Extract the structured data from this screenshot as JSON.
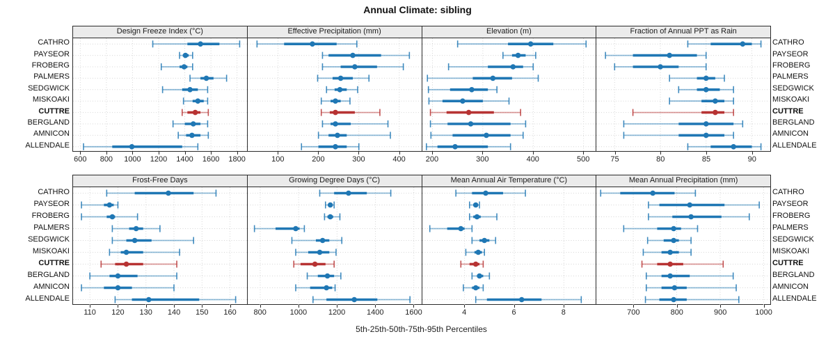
{
  "title": "Annual Climate: sibling",
  "caption": "5th-25th-50th-75th-95th Percentiles",
  "stations": [
    "CATHRO",
    "PAYSEOR",
    "FROBERG",
    "PALMERS",
    "SEDGWICK",
    "MISKOAKI",
    "CUTTRE",
    "BERGLAND",
    "AMNICON",
    "ALLENDALE"
  ],
  "highlight_station": "CUTTRE",
  "colors": {
    "series": "#1f77b4",
    "highlight": "#b73333",
    "header_bg": "#ebebeb",
    "grid": "#d6d6d6",
    "border": "#2a2a2a"
  },
  "chart_data": [
    {
      "type": "dotplot-percentiles",
      "title": "Design Freeze Index (°C)",
      "percentiles": [
        "5th",
        "25th",
        "50th",
        "75th",
        "95th"
      ],
      "xlim": [
        545,
        1875
      ],
      "ticks": [
        600,
        800,
        1000,
        1200,
        1400,
        1600,
        1800
      ],
      "series": [
        {
          "name": "CATHRO",
          "values": [
            1155,
            1420,
            1520,
            1665,
            1820
          ]
        },
        {
          "name": "PAYSEOR",
          "values": [
            1360,
            1385,
            1405,
            1430,
            1460
          ]
        },
        {
          "name": "FROBERG",
          "values": [
            1220,
            1360,
            1395,
            1420,
            1460
          ]
        },
        {
          "name": "PALMERS",
          "values": [
            1440,
            1520,
            1565,
            1620,
            1720
          ]
        },
        {
          "name": "SEDGWICK",
          "values": [
            1230,
            1380,
            1440,
            1500,
            1575
          ]
        },
        {
          "name": "MISKOAKI",
          "values": [
            1390,
            1460,
            1500,
            1545,
            1575
          ]
        },
        {
          "name": "CUTTRE",
          "values": [
            1380,
            1420,
            1480,
            1520,
            1580
          ]
        },
        {
          "name": "BERGLAND",
          "values": [
            1310,
            1400,
            1465,
            1520,
            1575
          ]
        },
        {
          "name": "AMNICON",
          "values": [
            1350,
            1410,
            1455,
            1520,
            1580
          ]
        },
        {
          "name": "ALLENDALE",
          "values": [
            625,
            845,
            995,
            1380,
            1500
          ]
        }
      ]
    },
    {
      "type": "dotplot-percentiles",
      "title": "Effective Precipitation (mm)",
      "percentiles": [
        "5th",
        "25th",
        "50th",
        "75th",
        "95th"
      ],
      "xlim": [
        25,
        455
      ],
      "ticks": [
        100,
        200,
        300,
        400
      ],
      "series": [
        {
          "name": "CATHRO",
          "values": [
            48,
            115,
            185,
            245,
            295
          ]
        },
        {
          "name": "PAYSEOR",
          "values": [
            210,
            225,
            285,
            355,
            425
          ]
        },
        {
          "name": "FROBERG",
          "values": [
            210,
            255,
            290,
            345,
            410
          ]
        },
        {
          "name": "PALMERS",
          "values": [
            198,
            235,
            255,
            285,
            325
          ]
        },
        {
          "name": "SEDGWICK",
          "values": [
            220,
            240,
            253,
            270,
            297
          ]
        },
        {
          "name": "MISKOAKI",
          "values": [
            207,
            230,
            242,
            255,
            278
          ]
        },
        {
          "name": "CUTTRE",
          "values": [
            207,
            228,
            242,
            290,
            352
          ]
        },
        {
          "name": "BERGLAND",
          "values": [
            210,
            230,
            242,
            280,
            372
          ]
        },
        {
          "name": "AMNICON",
          "values": [
            200,
            225,
            247,
            270,
            378
          ]
        },
        {
          "name": "ALLENDALE",
          "values": [
            158,
            200,
            242,
            270,
            300
          ]
        }
      ]
    },
    {
      "type": "dotplot-percentiles",
      "title": "Elevation (m)",
      "percentiles": [
        "5th",
        "25th",
        "50th",
        "75th",
        "95th"
      ],
      "xlim": [
        180,
        525
      ],
      "ticks": [
        200,
        300,
        400,
        500
      ],
      "series": [
        {
          "name": "CATHRO",
          "values": [
            250,
            350,
            395,
            440,
            505
          ]
        },
        {
          "name": "PAYSEOR",
          "values": [
            340,
            358,
            370,
            385,
            405
          ]
        },
        {
          "name": "FROBERG",
          "values": [
            232,
            310,
            360,
            380,
            400
          ]
        },
        {
          "name": "PALMERS",
          "values": [
            190,
            280,
            320,
            358,
            410
          ]
        },
        {
          "name": "SEDGWICK",
          "values": [
            192,
            235,
            278,
            310,
            328
          ]
        },
        {
          "name": "MISKOAKI",
          "values": [
            193,
            220,
            260,
            300,
            352
          ]
        },
        {
          "name": "CUTTRE",
          "values": [
            196,
            228,
            272,
            322,
            375
          ]
        },
        {
          "name": "BERGLAND",
          "values": [
            196,
            230,
            276,
            355,
            385
          ]
        },
        {
          "name": "AMNICON",
          "values": [
            197,
            240,
            307,
            355,
            380
          ]
        },
        {
          "name": "ALLENDALE",
          "values": [
            188,
            210,
            245,
            310,
            355
          ]
        }
      ]
    },
    {
      "type": "dotplot-percentiles",
      "title": "Fraction of Annual PPT as Rain",
      "percentiles": [
        "5th",
        "25th",
        "50th",
        "75th",
        "95th"
      ],
      "xlim": [
        73,
        92
      ],
      "ticks": [
        75,
        80,
        85,
        90
      ],
      "series": [
        {
          "name": "CATHRO",
          "values": [
            83,
            85.5,
            89,
            90,
            91
          ]
        },
        {
          "name": "PAYSEOR",
          "values": [
            74,
            77,
            81,
            84,
            85
          ]
        },
        {
          "name": "FROBERG",
          "values": [
            75,
            77,
            80,
            82,
            85
          ]
        },
        {
          "name": "PALMERS",
          "values": [
            81,
            84,
            85,
            86,
            87
          ]
        },
        {
          "name": "SEDGWICK",
          "values": [
            82,
            84,
            85,
            86.5,
            88
          ]
        },
        {
          "name": "MISKOAKI",
          "values": [
            81,
            84.5,
            86,
            87,
            88
          ]
        },
        {
          "name": "CUTTRE",
          "values": [
            77,
            84.5,
            86,
            87,
            88
          ]
        },
        {
          "name": "BERGLAND",
          "values": [
            76,
            82,
            85,
            88,
            89
          ]
        },
        {
          "name": "AMNICON",
          "values": [
            76,
            82,
            85,
            87,
            88
          ]
        },
        {
          "name": "ALLENDALE",
          "values": [
            83,
            85.5,
            88,
            90,
            91
          ]
        }
      ]
    },
    {
      "type": "dotplot-percentiles",
      "title": "Frost-Free Days",
      "percentiles": [
        "5th",
        "25th",
        "50th",
        "75th",
        "95th"
      ],
      "xlim": [
        104,
        166
      ],
      "ticks": [
        110,
        120,
        130,
        140,
        150,
        160
      ],
      "series": [
        {
          "name": "CATHRO",
          "values": [
            116,
            126,
            138,
            147,
            155
          ]
        },
        {
          "name": "PAYSEOR",
          "values": [
            107,
            115,
            117,
            118.5,
            120
          ]
        },
        {
          "name": "FROBERG",
          "values": [
            107,
            116,
            118,
            119,
            127
          ]
        },
        {
          "name": "PALMERS",
          "values": [
            118,
            124,
            126.5,
            129,
            135
          ]
        },
        {
          "name": "SEDGWICK",
          "values": [
            118,
            123,
            126,
            132,
            147
          ]
        },
        {
          "name": "MISKOAKI",
          "values": [
            117,
            121,
            123,
            129,
            142
          ]
        },
        {
          "name": "CUTTRE",
          "values": [
            114,
            119,
            123,
            129,
            141
          ]
        },
        {
          "name": "BERGLAND",
          "values": [
            110,
            117,
            120,
            127,
            141
          ]
        },
        {
          "name": "AMNICON",
          "values": [
            107,
            115,
            120,
            125,
            140
          ]
        },
        {
          "name": "ALLENDALE",
          "values": [
            119,
            125,
            131,
            149,
            162
          ]
        }
      ]
    },
    {
      "type": "dotplot-percentiles",
      "title": "Growing Degree Days (°C)",
      "percentiles": [
        "5th",
        "25th",
        "50th",
        "75th",
        "95th"
      ],
      "xlim": [
        735,
        1640
      ],
      "ticks": [
        800,
        1000,
        1200,
        1400,
        1600
      ],
      "series": [
        {
          "name": "CATHRO",
          "values": [
            1110,
            1185,
            1260,
            1355,
            1480
          ]
        },
        {
          "name": "PAYSEOR",
          "values": [
            1140,
            1155,
            1165,
            1172,
            1185
          ]
        },
        {
          "name": "FROBERG",
          "values": [
            1135,
            1150,
            1165,
            1180,
            1215
          ]
        },
        {
          "name": "PALMERS",
          "values": [
            770,
            880,
            985,
            1005,
            1030
          ]
        },
        {
          "name": "SEDGWICK",
          "values": [
            965,
            1090,
            1125,
            1160,
            1225
          ]
        },
        {
          "name": "MISKOAKI",
          "values": [
            985,
            1050,
            1110,
            1160,
            1195
          ]
        },
        {
          "name": "CUTTRE",
          "values": [
            975,
            1010,
            1085,
            1140,
            1185
          ]
        },
        {
          "name": "BERGLAND",
          "values": [
            1045,
            1100,
            1150,
            1185,
            1220
          ]
        },
        {
          "name": "AMNICON",
          "values": [
            985,
            1060,
            1145,
            1175,
            1190
          ]
        },
        {
          "name": "ALLENDALE",
          "values": [
            1075,
            1145,
            1290,
            1410,
            1580
          ]
        }
      ]
    },
    {
      "type": "dotplot-percentiles",
      "title": "Mean Annual Air Temperature (°C)",
      "percentiles": [
        "5th",
        "25th",
        "50th",
        "75th",
        "95th"
      ],
      "xlim": [
        2.3,
        9.3
      ],
      "ticks": [
        4,
        6,
        8
      ],
      "series": [
        {
          "name": "CATHRO",
          "values": [
            3.65,
            4.3,
            4.85,
            5.55,
            6.45
          ]
        },
        {
          "name": "PAYSEOR",
          "values": [
            4.2,
            4.35,
            4.45,
            4.5,
            4.6
          ]
        },
        {
          "name": "FROBERG",
          "values": [
            4.2,
            4.35,
            4.5,
            4.65,
            5.3
          ]
        },
        {
          "name": "PALMERS",
          "values": [
            2.6,
            3.3,
            3.85,
            4.0,
            4.3
          ]
        },
        {
          "name": "SEDGWICK",
          "values": [
            4.3,
            4.6,
            4.8,
            5.0,
            5.25
          ]
        },
        {
          "name": "MISKOAKI",
          "values": [
            4.05,
            4.4,
            4.55,
            4.7,
            4.8
          ]
        },
        {
          "name": "CUTTRE",
          "values": [
            3.85,
            4.2,
            4.45,
            4.6,
            4.75
          ]
        },
        {
          "name": "BERGLAND",
          "values": [
            4.3,
            4.5,
            4.6,
            4.75,
            5.0
          ]
        },
        {
          "name": "AMNICON",
          "values": [
            3.95,
            4.3,
            4.45,
            4.6,
            4.75
          ]
        },
        {
          "name": "ALLENDALE",
          "values": [
            4.45,
            4.9,
            6.3,
            7.1,
            8.7
          ]
        }
      ]
    },
    {
      "type": "dotplot-percentiles",
      "title": "Mean Annual Precipitation (mm)",
      "percentiles": [
        "5th",
        "25th",
        "50th",
        "75th",
        "95th"
      ],
      "xlim": [
        615,
        1015
      ],
      "ticks": [
        700,
        800,
        900,
        1000
      ],
      "series": [
        {
          "name": "CATHRO",
          "values": [
            625,
            670,
            745,
            795,
            843
          ]
        },
        {
          "name": "PAYSEOR",
          "values": [
            735,
            760,
            830,
            910,
            990
          ]
        },
        {
          "name": "FROBERG",
          "values": [
            735,
            790,
            833,
            903,
            967
          ]
        },
        {
          "name": "PALMERS",
          "values": [
            678,
            755,
            793,
            810,
            848
          ]
        },
        {
          "name": "SEDGWICK",
          "values": [
            733,
            770,
            793,
            805,
            833
          ]
        },
        {
          "name": "MISKOAKI",
          "values": [
            723,
            765,
            785,
            805,
            833
          ]
        },
        {
          "name": "CUTTRE",
          "values": [
            720,
            755,
            785,
            815,
            907
          ]
        },
        {
          "name": "BERGLAND",
          "values": [
            730,
            765,
            785,
            830,
            930
          ]
        },
        {
          "name": "AMNICON",
          "values": [
            730,
            765,
            795,
            823,
            937
          ]
        },
        {
          "name": "ALLENDALE",
          "values": [
            728,
            760,
            793,
            823,
            943
          ]
        }
      ]
    }
  ]
}
